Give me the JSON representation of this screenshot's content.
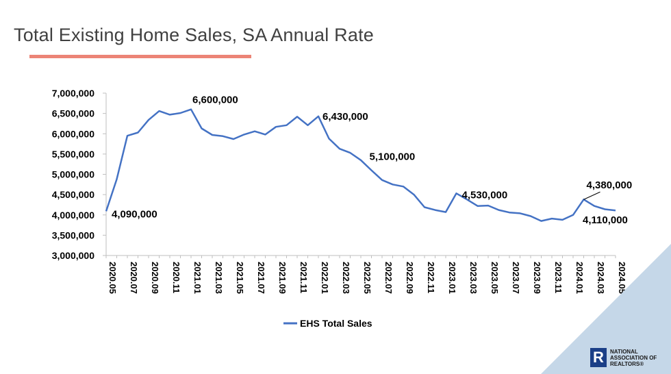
{
  "page": {
    "title": "Total Existing Home Sales, SA Annual Rate",
    "accent_color": "#ec8476",
    "corner_color": "#c5d7e8"
  },
  "logo": {
    "icon": "realtor-r-logo-icon",
    "line1": "NATIONAL",
    "line2": "ASSOCIATION OF",
    "line3": "REALTORS®"
  },
  "chart_data": {
    "type": "line",
    "title": "",
    "xlabel": "",
    "ylabel": "",
    "ylim": [
      3000000,
      7000000
    ],
    "yticks": [
      3000000,
      3500000,
      4000000,
      4500000,
      5000000,
      5500000,
      6000000,
      6500000,
      7000000
    ],
    "ytick_labels": [
      "3,000,000",
      "3,500,000",
      "4,000,000",
      "4,500,000",
      "5,000,000",
      "5,500,000",
      "6,000,000",
      "6,500,000",
      "7,000,000"
    ],
    "grid": false,
    "legend_position": "bottom",
    "categories": [
      "2020.05",
      "2020.06",
      "2020.07",
      "2020.08",
      "2020.09",
      "2020.10",
      "2020.11",
      "2020.12",
      "2021.01",
      "2021.02",
      "2021.03",
      "2021.04",
      "2021.05",
      "2021.06",
      "2021.07",
      "2021.08",
      "2021.09",
      "2021.10",
      "2021.11",
      "2021.12",
      "2022.01",
      "2022.02",
      "2022.03",
      "2022.04",
      "2022.05",
      "2022.06",
      "2022.07",
      "2022.08",
      "2022.09",
      "2022.10",
      "2022.11",
      "2022.12",
      "2023.01",
      "2023.02",
      "2023.03",
      "2023.04",
      "2023.05",
      "2023.06",
      "2023.07",
      "2023.08",
      "2023.09",
      "2023.10",
      "2023.11",
      "2023.12",
      "2024.01",
      "2024.02",
      "2024.03",
      "2024.04",
      "2024.05"
    ],
    "tick_labels": [
      "2020.05",
      "2020.07",
      "2020.09",
      "2020.11",
      "2021.01",
      "2021.03",
      "2021.05",
      "2021.07",
      "2021.09",
      "2021.11",
      "2022.01",
      "2022.03",
      "2022.05",
      "2022.07",
      "2022.09",
      "2022.11",
      "2023.01",
      "2023.03",
      "2023.05",
      "2023.07",
      "2023.09",
      "2023.11",
      "2024.01",
      "2024.03",
      "2024.05"
    ],
    "series": [
      {
        "name": "EHS Total Sales",
        "color": "#4472c4",
        "values": [
          4090000,
          4880000,
          5950000,
          6030000,
          6340000,
          6560000,
          6470000,
          6510000,
          6600000,
          6130000,
          5970000,
          5940000,
          5870000,
          5980000,
          6060000,
          5980000,
          6170000,
          6210000,
          6420000,
          6210000,
          6430000,
          5880000,
          5630000,
          5530000,
          5350000,
          5100000,
          4860000,
          4750000,
          4700000,
          4500000,
          4190000,
          4120000,
          4070000,
          4530000,
          4380000,
          4220000,
          4230000,
          4120000,
          4060000,
          4040000,
          3970000,
          3850000,
          3910000,
          3880000,
          4000000,
          4380000,
          4220000,
          4140000,
          4110000
        ]
      }
    ],
    "annotations": [
      {
        "text": "4,090,000",
        "index": 0
      },
      {
        "text": "6,600,000",
        "index": 8
      },
      {
        "text": "6,430,000",
        "index": 20
      },
      {
        "text": "5,100,000",
        "index": 25
      },
      {
        "text": "4,530,000",
        "index": 33
      },
      {
        "text": "4,380,000",
        "index": 45
      },
      {
        "text": "4,110,000",
        "index": 48
      }
    ]
  }
}
